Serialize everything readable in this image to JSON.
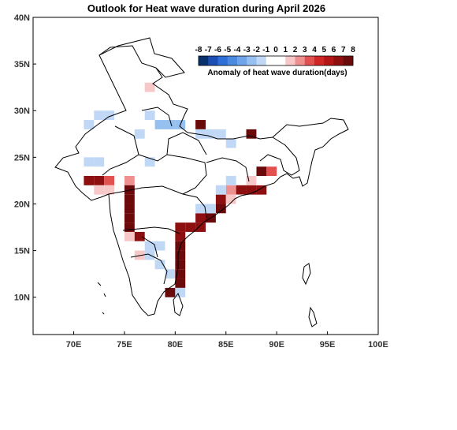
{
  "title": "Outlook for Heat wave duration during April 2026",
  "axes": {
    "x_ticks": [
      "70E",
      "75E",
      "80E",
      "85E",
      "90E",
      "95E",
      "100E"
    ],
    "y_ticks": [
      "40N",
      "35N",
      "30N",
      "25N",
      "20N",
      "15N",
      "10N"
    ]
  },
  "legend": {
    "title": "Anomaly of heat wave duration(days)",
    "values": [
      "-8",
      "-7",
      "-6",
      "-5",
      "-4",
      "-3",
      "-2",
      "-1",
      "0",
      "1",
      "2",
      "3",
      "4",
      "5",
      "6",
      "7",
      "8"
    ],
    "colors": [
      "#08306b",
      "#1c4fb3",
      "#2f6fd8",
      "#4a8be0",
      "#6fa5e8",
      "#95c0f0",
      "#c0d8f6",
      "#ffffff",
      "#ffffff",
      "#f7c8c8",
      "#ee9090",
      "#e25050",
      "#d02626",
      "#b31616",
      "#8e0f0f",
      "#6a0a0a"
    ]
  },
  "map_data": {
    "region": "India",
    "lon_range": [
      66,
      100
    ],
    "lat_range": [
      6,
      40
    ],
    "grid_step_deg": 1,
    "cells": [
      {
        "lon": 71.5,
        "lat": 28.5,
        "anom": -1
      },
      {
        "lon": 72.5,
        "lat": 29.5,
        "anom": -1
      },
      {
        "lon": 73.5,
        "lat": 29.5,
        "anom": -1
      },
      {
        "lon": 77.5,
        "lat": 32.5,
        "anom": 2
      },
      {
        "lon": 76.5,
        "lat": 33.5,
        "anom": 1
      },
      {
        "lon": 77.5,
        "lat": 29.5,
        "anom": -1
      },
      {
        "lon": 76.5,
        "lat": 27.5,
        "anom": -1
      },
      {
        "lon": 77.5,
        "lat": 24.5,
        "anom": -1
      },
      {
        "lon": 78.5,
        "lat": 28.5,
        "anom": -2
      },
      {
        "lon": 79.5,
        "lat": 28.5,
        "anom": -2
      },
      {
        "lon": 80.5,
        "lat": 28.5,
        "anom": -2
      },
      {
        "lon": 80.5,
        "lat": 29.5,
        "anom": 1
      },
      {
        "lon": 82.5,
        "lat": 28.5,
        "anom": 8
      },
      {
        "lon": 82.5,
        "lat": 27.5,
        "anom": -1
      },
      {
        "lon": 83.5,
        "lat": 27.5,
        "anom": -1
      },
      {
        "lon": 84.5,
        "lat": 27.5,
        "anom": -1
      },
      {
        "lon": 85.5,
        "lat": 26.5,
        "anom": -1
      },
      {
        "lon": 87.5,
        "lat": 27.5,
        "anom": 8
      },
      {
        "lon": 71.5,
        "lat": 24.5,
        "anom": -1
      },
      {
        "lon": 72.5,
        "lat": 24.5,
        "anom": -1
      },
      {
        "lon": 71.5,
        "lat": 23.5,
        "anom": 1
      },
      {
        "lon": 71.5,
        "lat": 22.5,
        "anom": 7
      },
      {
        "lon": 72.5,
        "lat": 22.5,
        "anom": 7
      },
      {
        "lon": 73.5,
        "lat": 22.5,
        "anom": 4
      },
      {
        "lon": 72.5,
        "lat": 21.5,
        "anom": 2
      },
      {
        "lon": 73.5,
        "lat": 21.5,
        "anom": 2
      },
      {
        "lon": 75.5,
        "lat": 22.5,
        "anom": 3
      },
      {
        "lon": 75.5,
        "lat": 21.5,
        "anom": 8
      },
      {
        "lon": 75.5,
        "lat": 20.5,
        "anom": 8
      },
      {
        "lon": 75.5,
        "lat": 19.5,
        "anom": 8
      },
      {
        "lon": 75.5,
        "lat": 18.5,
        "anom": 8
      },
      {
        "lon": 75.5,
        "lat": 17.5,
        "anom": 8
      },
      {
        "lon": 75.5,
        "lat": 16.5,
        "anom": 2
      },
      {
        "lon": 76.5,
        "lat": 16.5,
        "anom": 7
      },
      {
        "lon": 76.5,
        "lat": 15.5,
        "anom": 1
      },
      {
        "lon": 76.5,
        "lat": 14.5,
        "anom": 2
      },
      {
        "lon": 77.5,
        "lat": 15.5,
        "anom": -1
      },
      {
        "lon": 77.5,
        "lat": 14.5,
        "anom": -1
      },
      {
        "lon": 78.5,
        "lat": 15.5,
        "anom": -1
      },
      {
        "lon": 78.5,
        "lat": 13.5,
        "anom": -1
      },
      {
        "lon": 79.5,
        "lat": 14.5,
        "anom": 1
      },
      {
        "lon": 79.5,
        "lat": 13.5,
        "anom": 1
      },
      {
        "lon": 79.5,
        "lat": 12.5,
        "anom": -1
      },
      {
        "lon": 79.5,
        "lat": 11.5,
        "anom": 1
      },
      {
        "lon": 80.5,
        "lat": 16.5,
        "anom": 7
      },
      {
        "lon": 80.5,
        "lat": 15.5,
        "anom": 8
      },
      {
        "lon": 80.5,
        "lat": 14.5,
        "anom": 8
      },
      {
        "lon": 80.5,
        "lat": 13.5,
        "anom": 8
      },
      {
        "lon": 80.5,
        "lat": 12.5,
        "anom": 8
      },
      {
        "lon": 80.5,
        "lat": 11.5,
        "anom": 8
      },
      {
        "lon": 79.5,
        "lat": 10.5,
        "anom": 8
      },
      {
        "lon": 80.5,
        "lat": 10.5,
        "anom": -1
      },
      {
        "lon": 78.5,
        "lat": 9.5,
        "anom": 1
      },
      {
        "lon": 80.5,
        "lat": 17.5,
        "anom": 7
      },
      {
        "lon": 81.5,
        "lat": 17.5,
        "anom": 7
      },
      {
        "lon": 82.5,
        "lat": 17.5,
        "anom": 7
      },
      {
        "lon": 83.5,
        "lat": 18.5,
        "anom": 8
      },
      {
        "lon": 82.5,
        "lat": 18.5,
        "anom": 7
      },
      {
        "lon": 84.5,
        "lat": 19.5,
        "anom": 8
      },
      {
        "lon": 83.5,
        "lat": 19.5,
        "anom": -1
      },
      {
        "lon": 82.5,
        "lat": 19.5,
        "anom": -1
      },
      {
        "lon": 84.5,
        "lat": 20.5,
        "anom": 7
      },
      {
        "lon": 85.5,
        "lat": 21.5,
        "anom": 3
      },
      {
        "lon": 86.5,
        "lat": 21.5,
        "anom": 7
      },
      {
        "lon": 87.5,
        "lat": 21.5,
        "anom": 7
      },
      {
        "lon": 88.5,
        "lat": 21.5,
        "anom": 7
      },
      {
        "lon": 87.5,
        "lat": 22.5,
        "anom": 2
      },
      {
        "lon": 88.5,
        "lat": 23.5,
        "anom": 8
      },
      {
        "lon": 89.5,
        "lat": 23.5,
        "anom": 4
      },
      {
        "lon": 88.5,
        "lat": 22.5,
        "anom": 1
      },
      {
        "lon": 87.5,
        "lat": 23.5,
        "anom": 1
      },
      {
        "lon": 85.5,
        "lat": 20.5,
        "anom": 2
      },
      {
        "lon": 86.5,
        "lat": 20.5,
        "anom": 1
      },
      {
        "lon": 85.5,
        "lat": 22.5,
        "anom": -1
      },
      {
        "lon": 84.5,
        "lat": 21.5,
        "anom": -1
      }
    ]
  }
}
